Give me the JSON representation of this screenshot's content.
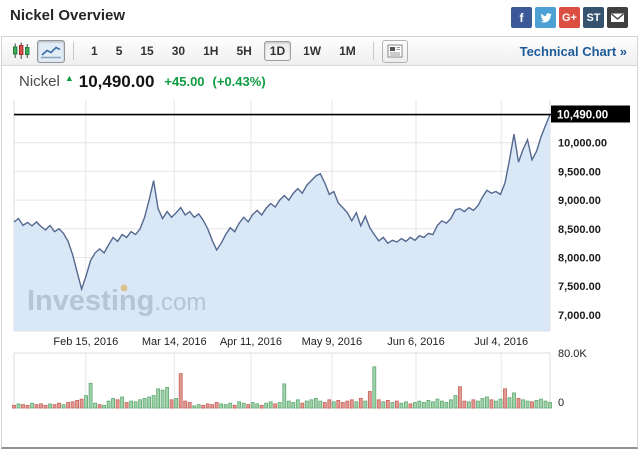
{
  "header": {
    "title": "Nickel Overview",
    "social": [
      {
        "name": "facebook-icon",
        "glyph": "f",
        "bg": "#3b5998"
      },
      {
        "name": "twitter-icon",
        "glyph": "bird",
        "bg": "#4da0d4"
      },
      {
        "name": "googleplus-icon",
        "glyph": "G+",
        "bg": "#dc4e41"
      },
      {
        "name": "stocktwits-icon",
        "glyph": "ST",
        "bg": "#35536e"
      },
      {
        "name": "email-icon",
        "glyph": "envelope",
        "bg": "#404040"
      }
    ]
  },
  "toolbar": {
    "chart_types": [
      {
        "name": "candlestick-chart-button",
        "selected": false
      },
      {
        "name": "line-chart-button",
        "selected": true
      }
    ],
    "intervals": [
      {
        "label": "1",
        "selected": false
      },
      {
        "label": "5",
        "selected": false
      },
      {
        "label": "15",
        "selected": false
      },
      {
        "label": "30",
        "selected": false
      },
      {
        "label": "1H",
        "selected": false
      },
      {
        "label": "5H",
        "selected": false
      },
      {
        "label": "1D",
        "selected": true
      },
      {
        "label": "1W",
        "selected": false
      },
      {
        "label": "1M",
        "selected": false
      }
    ],
    "technical_chart_label": "Technical Chart »"
  },
  "quote": {
    "name": "Nickel",
    "direction": "up",
    "price": "10,490.00",
    "change": "+45.00",
    "change_pct": "(+0.43%)"
  },
  "watermark": {
    "bold": "Investing",
    "rest": ".com"
  },
  "chart_data": {
    "type": "area",
    "title": "Nickel",
    "interval": "1D",
    "grid": true,
    "x_labels": [
      {
        "label": "Feb 15, 2016",
        "f": 0.134
      },
      {
        "label": "Mar 14, 2016",
        "f": 0.299
      },
      {
        "label": "Apr 11, 2016",
        "f": 0.442
      },
      {
        "label": "May 9, 2016",
        "f": 0.593
      },
      {
        "label": "Jun 6, 2016",
        "f": 0.75
      },
      {
        "label": "Jul 4, 2016",
        "f": 0.909
      }
    ],
    "y_axis": {
      "ylim": [
        7000,
        10600
      ],
      "ticks": [
        {
          "label": "10,000.00",
          "v": 10000
        },
        {
          "label": "9,500.00",
          "v": 9500
        },
        {
          "label": "9,000.00",
          "v": 9000
        },
        {
          "label": "8,500.00",
          "v": 8500
        },
        {
          "label": "8,000.00",
          "v": 8000
        },
        {
          "label": "7,500.00",
          "v": 7500
        },
        {
          "label": "7,000.00",
          "v": 7000
        }
      ],
      "current": {
        "label": "10,490.00",
        "v": 10490
      }
    },
    "series": [
      {
        "name": "Nickel",
        "values": [
          8620,
          8680,
          8560,
          8610,
          8550,
          8620,
          8540,
          8480,
          8560,
          8450,
          8500,
          8420,
          8280,
          8050,
          7750,
          7450,
          7680,
          7950,
          8080,
          8150,
          8080,
          8220,
          8350,
          8280,
          8400,
          8350,
          8450,
          8400,
          8500,
          8700,
          9000,
          9340,
          8850,
          8680,
          8800,
          8700,
          8780,
          8870,
          8740,
          8800,
          8700,
          8760,
          8650,
          8500,
          8300,
          8130,
          8250,
          8400,
          8520,
          8450,
          8600,
          8700,
          8620,
          8750,
          8820,
          8740,
          8860,
          8940,
          8880,
          9000,
          9080,
          9000,
          9120,
          9200,
          9120,
          9260,
          9340,
          9420,
          9460,
          9300,
          9100,
          9150,
          8950,
          8870,
          8780,
          8640,
          8780,
          8550,
          8720,
          8520,
          8400,
          8290,
          8350,
          8250,
          8300,
          8270,
          8330,
          8280,
          8350,
          8300,
          8380,
          8350,
          8420,
          8400,
          8560,
          8640,
          8600,
          8680,
          8830,
          8850,
          8800,
          8870,
          8820,
          8900,
          9050,
          9170,
          9120,
          9150,
          9100,
          9300,
          9700,
          10150,
          9660,
          9880,
          10050,
          9700,
          9850,
          10100,
          10300,
          10490
        ]
      }
    ],
    "volume": {
      "type": "bar",
      "axis": {
        "top_label": "80.0K",
        "top_value_k": 80,
        "bottom_label": "0"
      },
      "bars": [
        [
          4,
          "r"
        ],
        [
          6,
          "g"
        ],
        [
          5,
          "r"
        ],
        [
          4,
          "r"
        ],
        [
          7,
          "g"
        ],
        [
          5,
          "r"
        ],
        [
          6,
          "r"
        ],
        [
          4,
          "r"
        ],
        [
          6,
          "g"
        ],
        [
          5,
          "r"
        ],
        [
          7,
          "r"
        ],
        [
          5,
          "g"
        ],
        [
          8,
          "r"
        ],
        [
          9,
          "r"
        ],
        [
          11,
          "r"
        ],
        [
          13,
          "r"
        ],
        [
          18,
          "g"
        ],
        [
          36,
          "g"
        ],
        [
          7,
          "g"
        ],
        [
          5,
          "r"
        ],
        [
          4,
          "g"
        ],
        [
          10,
          "g"
        ],
        [
          14,
          "g"
        ],
        [
          12,
          "r"
        ],
        [
          16,
          "g"
        ],
        [
          8,
          "r"
        ],
        [
          10,
          "g"
        ],
        [
          9,
          "g"
        ],
        [
          12,
          "g"
        ],
        [
          14,
          "g"
        ],
        [
          16,
          "g"
        ],
        [
          18,
          "g"
        ],
        [
          28,
          "g"
        ],
        [
          26,
          "g"
        ],
        [
          30,
          "g"
        ],
        [
          12,
          "r"
        ],
        [
          14,
          "g"
        ],
        [
          50,
          "r"
        ],
        [
          10,
          "r"
        ],
        [
          8,
          "r"
        ],
        [
          3,
          "g"
        ],
        [
          5,
          "g"
        ],
        [
          4,
          "r"
        ],
        [
          6,
          "r"
        ],
        [
          5,
          "r"
        ],
        [
          8,
          "r"
        ],
        [
          6,
          "g"
        ],
        [
          5,
          "g"
        ],
        [
          7,
          "g"
        ],
        [
          4,
          "r"
        ],
        [
          9,
          "g"
        ],
        [
          7,
          "g"
        ],
        [
          5,
          "r"
        ],
        [
          8,
          "g"
        ],
        [
          6,
          "g"
        ],
        [
          4,
          "r"
        ],
        [
          7,
          "g"
        ],
        [
          9,
          "g"
        ],
        [
          6,
          "r"
        ],
        [
          8,
          "g"
        ],
        [
          35,
          "g"
        ],
        [
          10,
          "g"
        ],
        [
          8,
          "g"
        ],
        [
          12,
          "g"
        ],
        [
          7,
          "r"
        ],
        [
          10,
          "g"
        ],
        [
          12,
          "g"
        ],
        [
          14,
          "g"
        ],
        [
          10,
          "g"
        ],
        [
          8,
          "r"
        ],
        [
          12,
          "r"
        ],
        [
          9,
          "g"
        ],
        [
          11,
          "r"
        ],
        [
          8,
          "r"
        ],
        [
          10,
          "r"
        ],
        [
          12,
          "r"
        ],
        [
          9,
          "g"
        ],
        [
          14,
          "r"
        ],
        [
          10,
          "g"
        ],
        [
          24,
          "r"
        ],
        [
          60,
          "g"
        ],
        [
          12,
          "r"
        ],
        [
          9,
          "g"
        ],
        [
          11,
          "r"
        ],
        [
          8,
          "g"
        ],
        [
          10,
          "r"
        ],
        [
          7,
          "g"
        ],
        [
          9,
          "g"
        ],
        [
          6,
          "r"
        ],
        [
          8,
          "g"
        ],
        [
          10,
          "g"
        ],
        [
          8,
          "g"
        ],
        [
          11,
          "g"
        ],
        [
          9,
          "g"
        ],
        [
          13,
          "g"
        ],
        [
          10,
          "g"
        ],
        [
          8,
          "g"
        ],
        [
          12,
          "g"
        ],
        [
          18,
          "g"
        ],
        [
          31,
          "r"
        ],
        [
          10,
          "r"
        ],
        [
          9,
          "g"
        ],
        [
          12,
          "r"
        ],
        [
          10,
          "g"
        ],
        [
          14,
          "g"
        ],
        [
          16,
          "g"
        ],
        [
          12,
          "r"
        ],
        [
          10,
          "g"
        ],
        [
          13,
          "g"
        ],
        [
          28,
          "r"
        ],
        [
          15,
          "g"
        ],
        [
          22,
          "g"
        ],
        [
          14,
          "r"
        ],
        [
          12,
          "g"
        ],
        [
          10,
          "g"
        ],
        [
          9,
          "r"
        ],
        [
          11,
          "g"
        ],
        [
          13,
          "g"
        ],
        [
          10,
          "g"
        ],
        [
          8,
          "g"
        ]
      ]
    },
    "colors": {
      "line": "#55688f",
      "fill": "#d9e7f7",
      "grid": "#e6e6e6",
      "current_line": "#000000",
      "up_text": "#0e9e42",
      "vol_up": "#9fd3aa",
      "vol_up_border": "#63a974",
      "vol_down": "#e39a92",
      "vol_down_border": "#c4635c",
      "axis_text": "#1b1b1b"
    }
  }
}
